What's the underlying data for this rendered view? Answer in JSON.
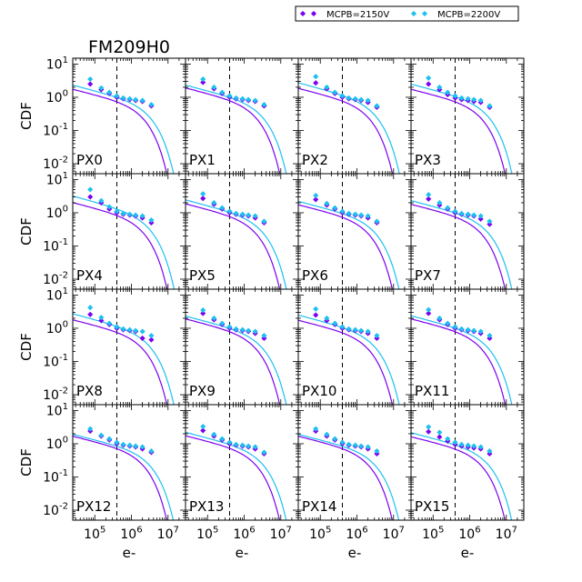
{
  "chart_data": {
    "type": "scatter",
    "title": "FM209H0",
    "ylabel": "CDF",
    "xlabel": "e-",
    "x_scale": "log",
    "y_scale": "log",
    "xlim": [
      25000,
      30000000
    ],
    "ylim": [
      0.005,
      15
    ],
    "x_ticks": [
      100000,
      1000000,
      10000000
    ],
    "x_tick_labels": [
      {
        "base": "10",
        "exp": "5"
      },
      {
        "base": "10",
        "exp": "6"
      },
      {
        "base": "10",
        "exp": "7"
      }
    ],
    "y_ticks": [
      10,
      1,
      0.1,
      0.01
    ],
    "y_tick_labels": [
      {
        "base": "10",
        "exp": "1"
      },
      {
        "base": "10",
        "exp": "0"
      },
      {
        "base": "10",
        "exp": "-1"
      },
      {
        "base": "10",
        "exp": "-2"
      }
    ],
    "threshold_x": 400000,
    "legend_position": "top-right",
    "series": [
      {
        "name": "MCPB=2150V",
        "color": "#7b00f0",
        "fit_cutoff": 2000000
      },
      {
        "name": "MCPB=2200V",
        "color": "#1ec0f0",
        "fit_cutoff": 3000000
      }
    ],
    "marker_x": [
      75000,
      150000,
      250000,
      400000,
      600000,
      900000,
      1300000,
      2000000,
      3500000
    ],
    "panels": [
      {
        "label": "PX0",
        "v2150": [
          2.5,
          1.7,
          1.3,
          1.0,
          0.9,
          0.85,
          0.8,
          0.75,
          0.55
        ],
        "v2200": [
          3.5,
          1.9,
          1.4,
          1.1,
          0.95,
          0.9,
          0.85,
          0.8,
          0.6
        ]
      },
      {
        "label": "PX1",
        "v2150": [
          2.8,
          1.8,
          1.3,
          1.0,
          0.9,
          0.85,
          0.8,
          0.75,
          0.55
        ],
        "v2200": [
          3.5,
          2.0,
          1.4,
          1.1,
          0.95,
          0.9,
          0.85,
          0.8,
          0.6
        ]
      },
      {
        "label": "PX2",
        "v2150": [
          2.7,
          1.8,
          1.3,
          1.0,
          0.9,
          0.85,
          0.8,
          0.7,
          0.5
        ],
        "v2200": [
          4.2,
          2.0,
          1.4,
          1.1,
          0.95,
          0.9,
          0.85,
          0.8,
          0.55
        ]
      },
      {
        "label": "PX3",
        "v2150": [
          2.5,
          1.7,
          1.2,
          0.95,
          0.85,
          0.8,
          0.75,
          0.7,
          0.5
        ],
        "v2200": [
          3.8,
          2.0,
          1.4,
          1.1,
          0.95,
          0.9,
          0.85,
          0.8,
          0.55
        ]
      },
      {
        "label": "PX4",
        "v2150": [
          3.0,
          2.0,
          1.3,
          1.0,
          0.9,
          0.85,
          0.8,
          0.7,
          0.5
        ],
        "v2200": [
          5.0,
          2.3,
          1.5,
          1.1,
          0.95,
          0.9,
          0.85,
          0.8,
          0.6
        ]
      },
      {
        "label": "PX5",
        "v2150": [
          2.7,
          1.8,
          1.3,
          1.0,
          0.9,
          0.85,
          0.8,
          0.7,
          0.5
        ],
        "v2200": [
          3.7,
          2.0,
          1.4,
          1.1,
          0.95,
          0.9,
          0.85,
          0.8,
          0.55
        ]
      },
      {
        "label": "PX6",
        "v2150": [
          2.5,
          1.7,
          1.3,
          1.0,
          0.9,
          0.85,
          0.8,
          0.7,
          0.5
        ],
        "v2200": [
          3.3,
          1.9,
          1.4,
          1.1,
          0.95,
          0.9,
          0.85,
          0.8,
          0.55
        ]
      },
      {
        "label": "PX7",
        "v2150": [
          2.6,
          1.7,
          1.3,
          1.0,
          0.9,
          0.85,
          0.8,
          0.65,
          0.45
        ],
        "v2200": [
          3.5,
          2.0,
          1.4,
          1.1,
          0.95,
          0.9,
          0.85,
          0.8,
          0.55
        ]
      },
      {
        "label": "PX8",
        "v2150": [
          2.6,
          1.7,
          1.3,
          1.0,
          0.9,
          0.85,
          0.8,
          0.5,
          0.45
        ],
        "v2200": [
          4.2,
          2.1,
          1.4,
          1.1,
          0.95,
          0.9,
          0.85,
          0.8,
          0.6
        ]
      },
      {
        "label": "PX9",
        "v2150": [
          2.8,
          1.8,
          1.3,
          1.0,
          0.9,
          0.85,
          0.8,
          0.7,
          0.5
        ],
        "v2200": [
          3.5,
          2.0,
          1.4,
          1.1,
          0.95,
          0.9,
          0.85,
          0.8,
          0.6
        ]
      },
      {
        "label": "PX10",
        "v2150": [
          2.5,
          1.7,
          1.3,
          1.0,
          0.9,
          0.85,
          0.8,
          0.7,
          0.5
        ],
        "v2200": [
          3.8,
          2.0,
          1.4,
          1.1,
          0.95,
          0.9,
          0.85,
          0.8,
          0.6
        ]
      },
      {
        "label": "PX11",
        "v2150": [
          2.8,
          1.8,
          1.3,
          1.0,
          0.9,
          0.85,
          0.8,
          0.7,
          0.5
        ],
        "v2200": [
          3.6,
          2.0,
          1.4,
          1.1,
          0.95,
          0.9,
          0.85,
          0.8,
          0.6
        ]
      },
      {
        "label": "PX12",
        "v2150": [
          2.4,
          1.7,
          1.3,
          1.0,
          0.9,
          0.85,
          0.8,
          0.7,
          0.55
        ],
        "v2200": [
          2.8,
          1.8,
          1.4,
          1.1,
          0.95,
          0.9,
          0.85,
          0.8,
          0.6
        ]
      },
      {
        "label": "PX13",
        "v2150": [
          2.5,
          1.7,
          1.3,
          1.0,
          0.9,
          0.85,
          0.8,
          0.7,
          0.5
        ],
        "v2200": [
          3.3,
          1.9,
          1.4,
          1.1,
          0.95,
          0.9,
          0.85,
          0.8,
          0.55
        ]
      },
      {
        "label": "PX14",
        "v2150": [
          2.4,
          1.7,
          1.3,
          1.0,
          0.9,
          0.85,
          0.8,
          0.7,
          0.5
        ],
        "v2200": [
          2.8,
          1.9,
          1.4,
          1.1,
          0.95,
          0.9,
          0.85,
          0.8,
          0.6
        ]
      },
      {
        "label": "PX15",
        "v2150": [
          2.3,
          1.6,
          1.2,
          0.95,
          0.85,
          0.8,
          0.75,
          0.7,
          0.5
        ],
        "v2200": [
          3.2,
          2.2,
          1.4,
          1.1,
          0.95,
          0.9,
          0.85,
          0.8,
          0.6
        ]
      }
    ]
  }
}
